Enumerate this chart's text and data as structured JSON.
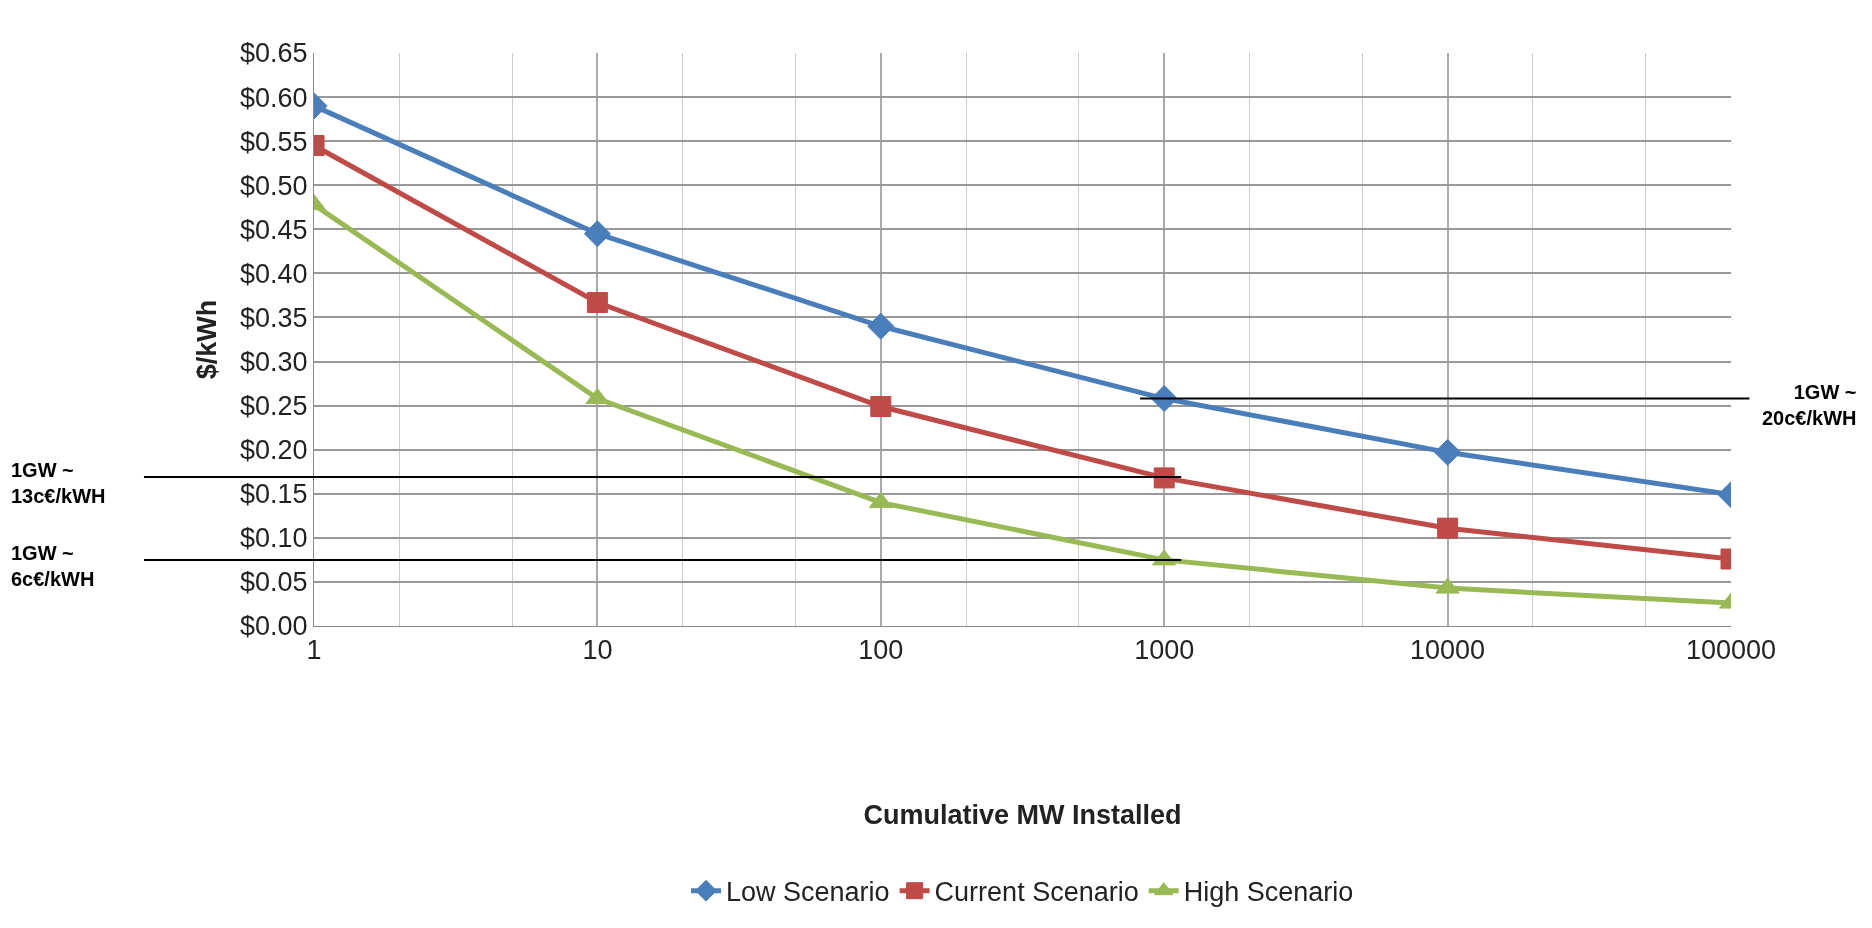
{
  "chart_data": {
    "type": "line",
    "xlabel": "Cumulative MW Installed",
    "ylabel": "$/kWh",
    "x": [
      1,
      10,
      100,
      1000,
      10000,
      100000
    ],
    "series": [
      {
        "name": "Low Scenario",
        "color": "#4a7ebb",
        "marker": "diamond",
        "values": [
          0.59,
          0.445,
          0.34,
          0.258,
          0.197,
          0.149
        ]
      },
      {
        "name": "Current Scenario",
        "color": "#be4b48",
        "marker": "square",
        "values": [
          0.545,
          0.367,
          0.249,
          0.168,
          0.111,
          0.076
        ]
      },
      {
        "name": "High Scenario",
        "color": "#98b954",
        "marker": "triangle",
        "values": [
          0.478,
          0.258,
          0.14,
          0.075,
          0.043,
          0.026
        ]
      }
    ],
    "log": "x",
    "xlim": [
      1,
      100000
    ],
    "xticks": [
      1,
      10,
      100,
      1000,
      10000,
      100000
    ],
    "ylim": [
      0,
      0.65
    ],
    "yticks": [
      {
        "value": 0,
        "label": "$0.00"
      },
      {
        "value": 0.05,
        "label": "$0.05"
      },
      {
        "value": 0.1,
        "label": "$0.10"
      },
      {
        "value": 0.15,
        "label": "$0.15"
      },
      {
        "value": 0.2,
        "label": "$0.20"
      },
      {
        "value": 0.25,
        "label": "$0.25"
      },
      {
        "value": 0.3,
        "label": "$0.30"
      },
      {
        "value": 0.35,
        "label": "$0.35"
      },
      {
        "value": 0.4,
        "label": "$0.40"
      },
      {
        "value": 0.45,
        "label": "$0.45"
      },
      {
        "value": 0.5,
        "label": "$0.50"
      },
      {
        "value": 0.55,
        "label": "$0.55"
      },
      {
        "value": 0.6,
        "label": "$0.60"
      },
      {
        "value": 0.65,
        "label": "$0.65"
      }
    ],
    "grid": true,
    "legend": "bottom",
    "line_style": "solid",
    "ref_lines": [
      {
        "axis": "y",
        "value": 0.258,
        "label": "1GW ~ 20c€/kWH",
        "color": "#000000"
      },
      {
        "axis": "y",
        "value": 0.169,
        "label": "1GW ~ 13c€/kWH",
        "color": "#000000"
      },
      {
        "axis": "y",
        "value": 0.075,
        "label": "1GW ~ 6c€/kWH",
        "color": "#000000"
      }
    ]
  }
}
